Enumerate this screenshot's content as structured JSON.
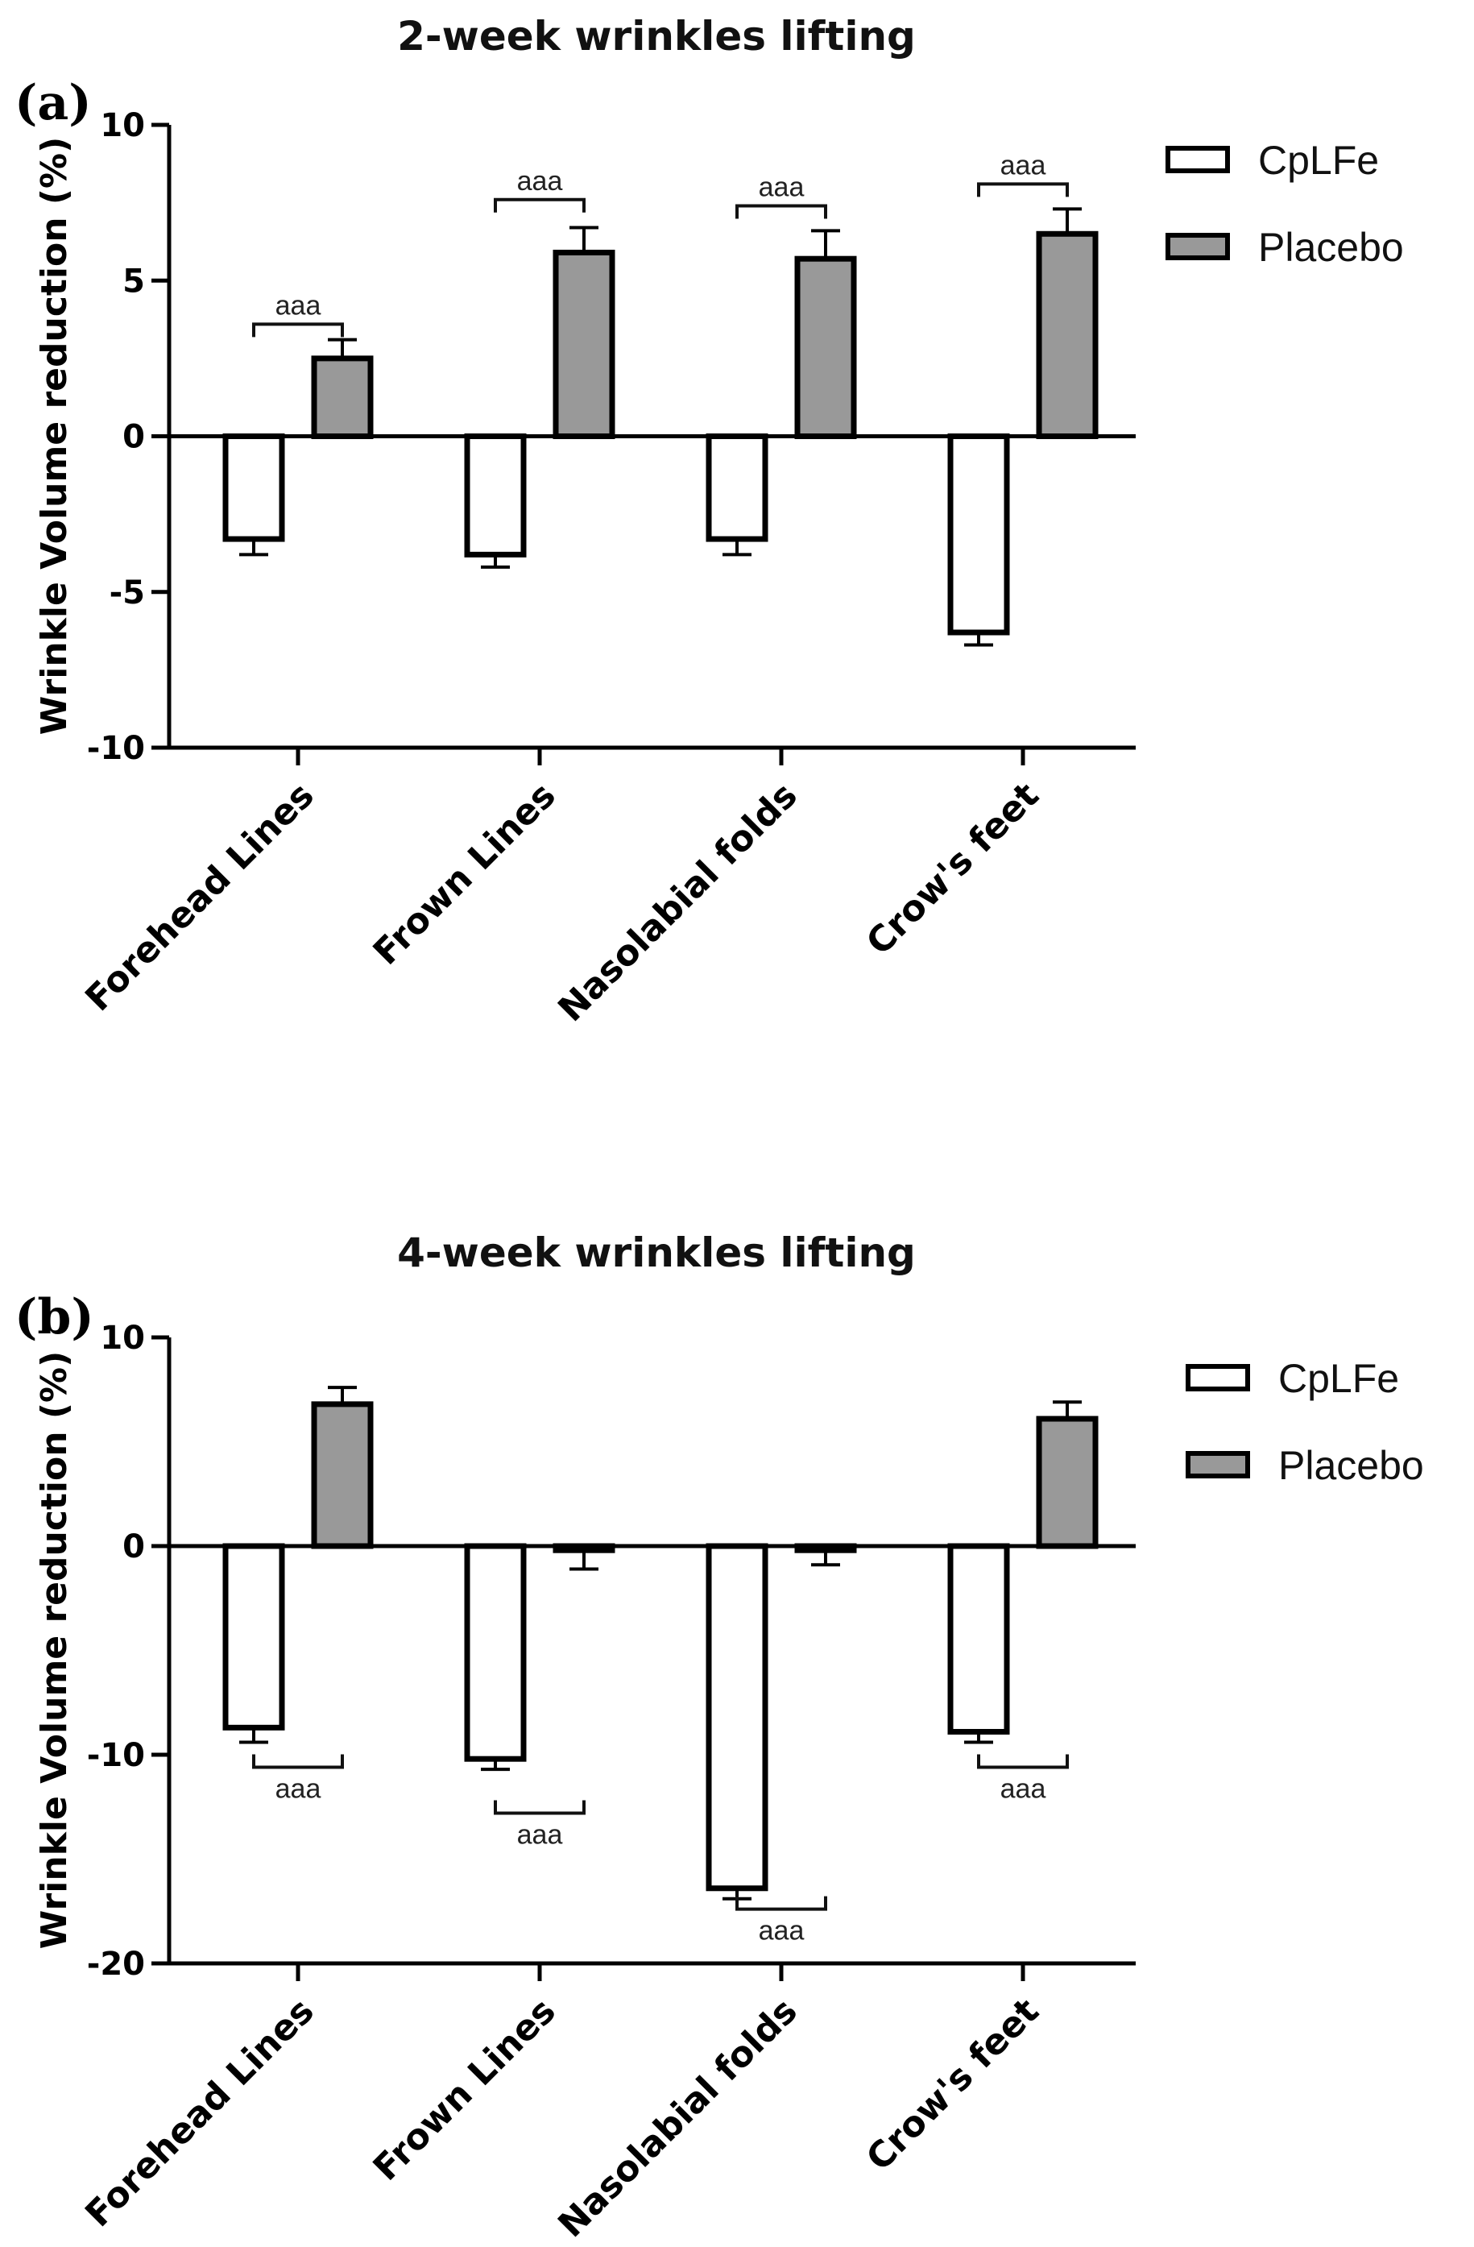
{
  "chart_data": [
    {
      "type": "bar",
      "panel_label": "(a)",
      "title": "2-week wrinkles lifting",
      "ylabel": "Wrinkle Volume reduction (%)",
      "xlabel": "",
      "ylim": [
        -10,
        10
      ],
      "yticks": [
        10,
        5,
        0,
        -5,
        -10
      ],
      "tick_labels": [
        "10",
        "5",
        "0",
        "-5",
        "-10"
      ],
      "categories": [
        "Forehead Lines",
        "Frown Lines",
        "Nasolabial folds",
        "Crow's feet"
      ],
      "series": [
        {
          "name": "CpLFe",
          "fill": "#ffffff",
          "values": [
            -3.3,
            -3.8,
            -3.3,
            -6.3
          ],
          "errors": [
            0.5,
            0.4,
            0.5,
            0.4
          ]
        },
        {
          "name": "Placebo",
          "fill": "#999999",
          "values": [
            2.5,
            5.9,
            5.7,
            6.5
          ],
          "errors": [
            0.6,
            0.8,
            0.9,
            0.8
          ]
        }
      ],
      "significance": [
        {
          "label": "aaa",
          "y": 3.6,
          "position": "above"
        },
        {
          "label": "aaa",
          "y": 7.6,
          "position": "above"
        },
        {
          "label": "aaa",
          "y": 7.4,
          "position": "above"
        },
        {
          "label": "aaa",
          "y": 8.1,
          "position": "above"
        }
      ],
      "legend_position": "top-right"
    },
    {
      "type": "bar",
      "panel_label": "(b)",
      "title": "4-week wrinkles lifting",
      "ylabel": "Wrinkle Volume reduction (%)",
      "xlabel": "",
      "ylim": [
        -20,
        10
      ],
      "yticks": [
        10,
        0,
        -10,
        -20
      ],
      "tick_labels": [
        "10",
        "0",
        "-10",
        "-20"
      ],
      "categories": [
        "Forehead Lines",
        "Frown Lines",
        "Nasolabial folds",
        "Crow's feet"
      ],
      "series": [
        {
          "name": "CpLFe",
          "fill": "#ffffff",
          "values": [
            -8.7,
            -10.2,
            -16.4,
            -8.9
          ],
          "errors": [
            0.7,
            0.5,
            0.5,
            0.5
          ]
        },
        {
          "name": "Placebo",
          "fill": "#999999",
          "values": [
            6.8,
            -0.2,
            -0.2,
            6.1
          ],
          "errors": [
            0.8,
            0.9,
            0.7,
            0.8
          ]
        }
      ],
      "significance": [
        {
          "label": "aaa",
          "y": -10.6,
          "position": "below"
        },
        {
          "label": "aaa",
          "y": -12.8,
          "position": "below"
        },
        {
          "label": "aaa",
          "y": -17.4,
          "position": "below"
        },
        {
          "label": "aaa",
          "y": -10.6,
          "position": "below"
        }
      ],
      "legend_position": "top-right"
    }
  ]
}
